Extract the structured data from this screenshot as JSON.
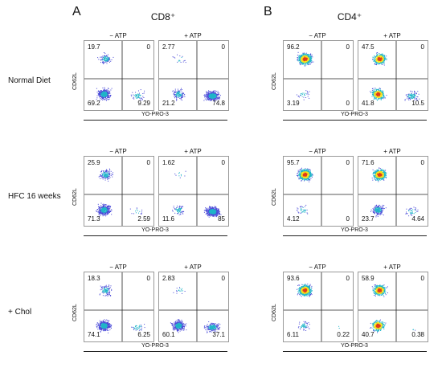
{
  "panels": {
    "A": {
      "letter": "A",
      "title": "CD8⁺"
    },
    "B": {
      "letter": "B",
      "title": "CD4⁺"
    }
  },
  "conditions": {
    "minus": "− ATP",
    "plus": "+ ATP"
  },
  "axes": {
    "x": "YO-PRO-3",
    "y": "CD62L"
  },
  "rows": [
    {
      "label": "Normal Diet",
      "cd8": {
        "minus": {
          "ul": "19.7",
          "ur": "0",
          "ll": "69.2",
          "lr": "9.29"
        },
        "plus": {
          "ul": "2.77",
          "ur": "0",
          "ll": "21.2",
          "lr": "74.8"
        }
      },
      "cd4": {
        "minus": {
          "ul": "96.2",
          "ur": "0",
          "ll": "3.19",
          "lr": "0"
        },
        "plus": {
          "ul": "47.5",
          "ur": "0",
          "ll": "41.8",
          "lr": "10.5"
        }
      }
    },
    {
      "label": "HFC 16 weeks",
      "cd8": {
        "minus": {
          "ul": "25.9",
          "ur": "0",
          "ll": "71.3",
          "lr": "2.59"
        },
        "plus": {
          "ul": "1.62",
          "ur": "0",
          "ll": "11.6",
          "lr": "85"
        }
      },
      "cd4": {
        "minus": {
          "ul": "95.7",
          "ur": "0",
          "ll": "4.12",
          "lr": "0"
        },
        "plus": {
          "ul": "71.6",
          "ur": "0",
          "ll": "23.7",
          "lr": "4.64"
        }
      }
    },
    {
      "label": "+ Chol",
      "cd8": {
        "minus": {
          "ul": "18.3",
          "ur": "0",
          "ll": "74.1",
          "lr": "6.25"
        },
        "plus": {
          "ul": "2.83",
          "ur": "0",
          "ll": "60.1",
          "lr": "37.1"
        }
      },
      "cd4": {
        "minus": {
          "ul": "93.6",
          "ur": "0",
          "ll": "6.11",
          "lr": "0.22"
        },
        "plus": {
          "ul": "58.9",
          "ur": "0",
          "ll": "40.7",
          "lr": "0.38"
        }
      }
    }
  ],
  "colors": {
    "sparse": "#4a4ad8",
    "mid": "#1fb5c8",
    "dense": "#f7e41a",
    "peak": "#e23a1c"
  }
}
